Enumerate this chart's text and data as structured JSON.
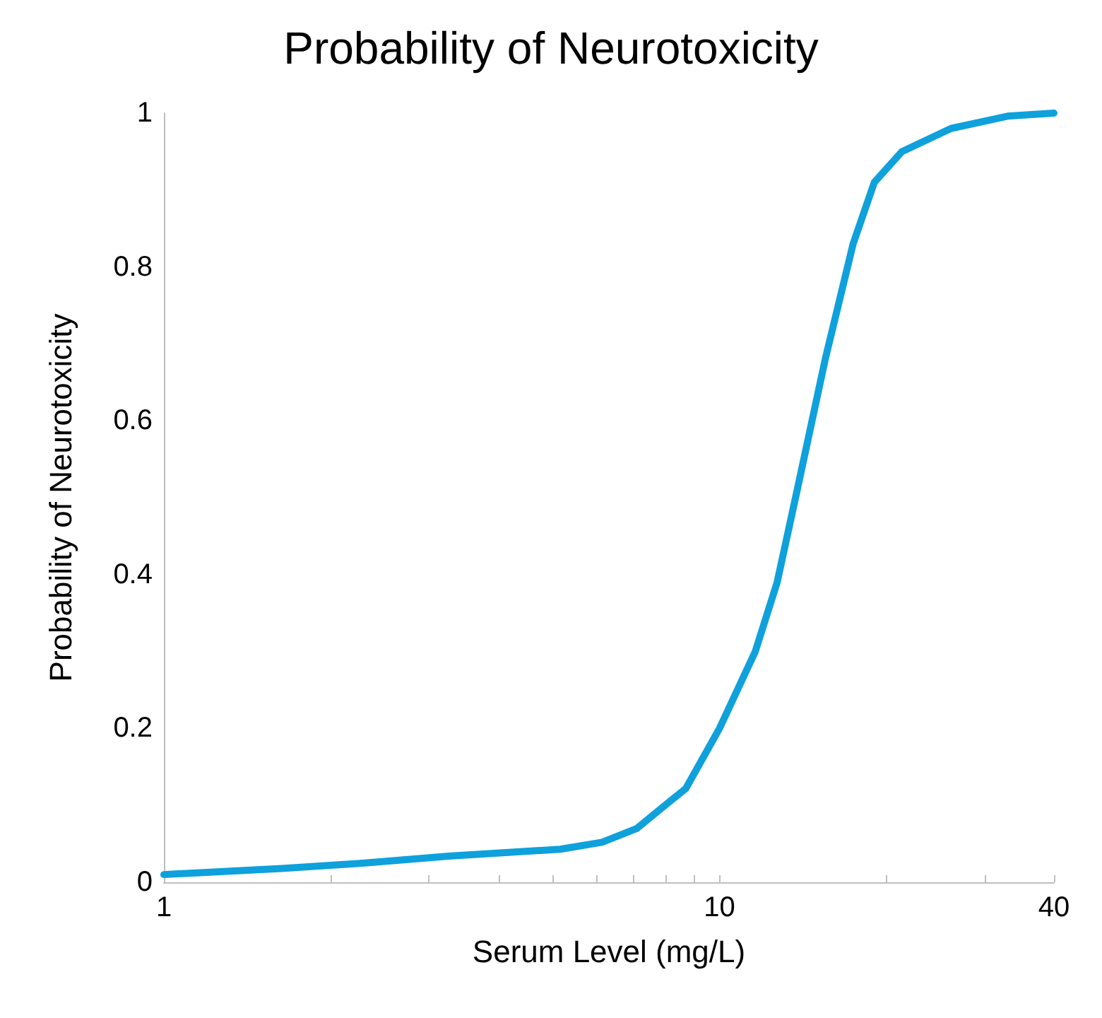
{
  "chart_data": {
    "type": "line",
    "title": "Probability of Neurotoxicity",
    "xlabel": "Serum Level (mg/L)",
    "ylabel": "Probability of Neurotoxicity",
    "log": "x",
    "grid": false,
    "marker": "none",
    "line_style": "solid",
    "xlim": [
      1,
      40
    ],
    "xticks": [
      1,
      {
        "value": 2,
        "label": null
      },
      {
        "value": 3,
        "label": null
      },
      {
        "value": 4,
        "label": null
      },
      {
        "value": 5,
        "label": null
      },
      {
        "value": 6,
        "label": null
      },
      {
        "value": 7,
        "label": null
      },
      {
        "value": 8,
        "label": null
      },
      {
        "value": 9,
        "label": null
      },
      10,
      {
        "value": 20,
        "label": null
      },
      {
        "value": 30,
        "label": null
      },
      40
    ],
    "ylim": [
      0,
      1
    ],
    "yticks": [
      0,
      0.2,
      0.4,
      0.6,
      0.8,
      1
    ],
    "x": [
      1,
      1.63,
      2.3,
      3.26,
      5.17,
      6.15,
      7.1,
      7.98,
      8.7,
      10,
      11.6,
      12.7,
      13.8,
      15.5,
      17.4,
      19,
      21.3,
      26.1,
      33,
      40
    ],
    "series": [
      {
        "color": "#0ea1dc",
        "values": [
          0.01,
          0.018,
          0.025,
          0.034,
          0.043,
          0.052,
          0.07,
          0.1,
          0.122,
          0.2,
          0.3,
          0.39,
          0.51,
          0.68,
          0.83,
          0.91,
          0.95,
          0.98,
          0.996,
          1
        ]
      }
    ]
  }
}
